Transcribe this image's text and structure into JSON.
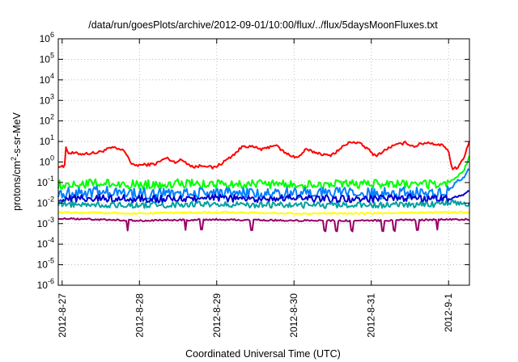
{
  "chart_data": {
    "type": "line",
    "title": "/data/run/goesPlots/archive/2012-09-01/10:00/flux/../flux/5daysMoonFluxes.txt",
    "xlabel": "Coordinated Universal Time (UTC)",
    "ylabel": {
      "prefix": "protons/cm",
      "superscript": "2",
      "suffix": "-s-sr-MeV"
    },
    "x_unit": "days since 2012-8-27 00:00 UTC",
    "xlim": [
      -0.05,
      5.27
    ],
    "ylim_log10": [
      -6,
      6
    ],
    "y_scale": "log",
    "grid": true,
    "x_ticks": [
      {
        "label": "2012-8-27",
        "value": 0
      },
      {
        "label": "2012-8-28",
        "value": 1
      },
      {
        "label": "2012-8-29",
        "value": 2
      },
      {
        "label": "2012-8-30",
        "value": 3
      },
      {
        "label": "2012-8-31",
        "value": 4
      },
      {
        "label": "2012-9-1",
        "value": 5
      }
    ],
    "y_ticks": [
      {
        "base": "10",
        "exp": "6",
        "value": 6
      },
      {
        "base": "10",
        "exp": "5",
        "value": 5
      },
      {
        "base": "10",
        "exp": "4",
        "value": 4
      },
      {
        "base": "10",
        "exp": "3",
        "value": 3
      },
      {
        "base": "10",
        "exp": "2",
        "value": 2
      },
      {
        "base": "10",
        "exp": "1",
        "value": 1
      },
      {
        "base": "10",
        "exp": "0",
        "value": 0
      },
      {
        "base": "10",
        "exp": "-1",
        "value": -1
      },
      {
        "base": "10",
        "exp": "-2",
        "value": -2
      },
      {
        "base": "10",
        "exp": "-3",
        "value": -3
      },
      {
        "base": "10",
        "exp": "-4",
        "value": -4
      },
      {
        "base": "10",
        "exp": "-5",
        "value": -5
      },
      {
        "base": "10",
        "exp": "-6",
        "value": -6
      }
    ],
    "series": [
      {
        "color": "#ff0000",
        "x": [
          -0.05,
          0.03,
          0.05,
          0.07,
          0.25,
          0.45,
          0.65,
          0.8,
          0.85,
          0.9,
          1.0,
          1.2,
          1.35,
          1.45,
          1.55,
          1.7,
          1.85,
          1.95,
          2.05,
          2.2,
          2.35,
          2.5,
          2.6,
          2.75,
          2.9,
          2.98,
          3.05,
          3.15,
          3.25,
          3.35,
          3.45,
          3.55,
          3.65,
          3.75,
          3.85,
          3.95,
          4.05,
          4.15,
          4.25,
          4.35,
          4.45,
          4.55,
          4.65,
          4.75,
          4.85,
          4.95,
          5.0,
          5.05,
          5.12,
          5.2,
          5.27
        ],
        "y_log10": [
          -0.2,
          -0.25,
          0.8,
          0.45,
          0.4,
          0.45,
          0.7,
          0.55,
          0.3,
          -0.15,
          -0.15,
          -0.1,
          0.2,
          0.0,
          0.1,
          -0.25,
          -0.15,
          -0.3,
          -0.1,
          0.3,
          0.8,
          0.7,
          0.6,
          0.85,
          0.4,
          0.3,
          0.2,
          0.6,
          0.5,
          0.4,
          0.3,
          0.5,
          0.8,
          1.0,
          0.9,
          0.65,
          0.3,
          0.5,
          0.75,
          0.85,
          0.95,
          0.75,
          0.9,
          0.95,
          0.85,
          0.8,
          0.5,
          -0.35,
          -0.25,
          0.2,
          1.0
        ],
        "noise": 0.07
      },
      {
        "color": "#00ff00",
        "x": [
          -0.05,
          0.5,
          1.0,
          1.5,
          2.0,
          2.5,
          3.0,
          3.5,
          4.0,
          4.5,
          4.9,
          5.0,
          5.1,
          5.2,
          5.27
        ],
        "y_log10": [
          -1.1,
          -1.05,
          -1.1,
          -1.05,
          -1.1,
          -1.05,
          -1.1,
          -1.1,
          -1.05,
          -1.1,
          -1.1,
          -1.0,
          -0.8,
          -0.4,
          0.25
        ],
        "noise": 0.22
      },
      {
        "color": "#0080ff",
        "x": [
          -0.05,
          0.5,
          1.0,
          1.5,
          2.0,
          2.5,
          3.0,
          3.5,
          4.0,
          4.5,
          4.9,
          5.0,
          5.1,
          5.2,
          5.27
        ],
        "y_log10": [
          -1.5,
          -1.45,
          -1.55,
          -1.5,
          -1.5,
          -1.55,
          -1.5,
          -1.5,
          -1.55,
          -1.5,
          -1.5,
          -1.4,
          -1.0,
          -0.7,
          -0.3
        ],
        "noise": 0.28
      },
      {
        "color": "#0000cc",
        "x": [
          -0.05,
          0.5,
          1.0,
          1.5,
          2.0,
          2.5,
          3.0,
          3.5,
          4.0,
          4.5,
          4.9,
          5.0,
          5.1,
          5.2,
          5.27
        ],
        "y_log10": [
          -1.8,
          -1.75,
          -1.8,
          -1.8,
          -1.75,
          -1.8,
          -1.75,
          -1.8,
          -1.8,
          -1.75,
          -1.8,
          -1.8,
          -1.7,
          -1.6,
          -1.4
        ],
        "noise": 0.18
      },
      {
        "color": "#00a0a0",
        "x": [
          -0.05,
          1.0,
          2.0,
          3.0,
          4.0,
          4.9,
          5.0,
          5.27
        ],
        "y_log10": [
          -2.05,
          -2.1,
          -2.05,
          -2.1,
          -2.1,
          -2.05,
          -2.0,
          -2.0
        ],
        "noise": 0.15
      },
      {
        "color": "#ffff00",
        "x": [
          -0.05,
          1.0,
          2.0,
          3.0,
          4.0,
          5.0,
          5.27
        ],
        "y_log10": [
          -2.45,
          -2.5,
          -2.45,
          -2.5,
          -2.5,
          -2.45,
          -2.45
        ],
        "noise": 0.04
      },
      {
        "color": "#990066",
        "x": [
          -0.05,
          1.0,
          2.0,
          3.0,
          4.0,
          5.0,
          5.27
        ],
        "y_log10": [
          -2.75,
          -2.85,
          -2.8,
          -2.85,
          -2.85,
          -2.8,
          -2.8
        ],
        "noise": 0.04,
        "dips": [
          0.85,
          1.6,
          1.8,
          2.45,
          3.4,
          3.55,
          3.75,
          4.15,
          4.3,
          4.6,
          4.85
        ]
      }
    ]
  }
}
